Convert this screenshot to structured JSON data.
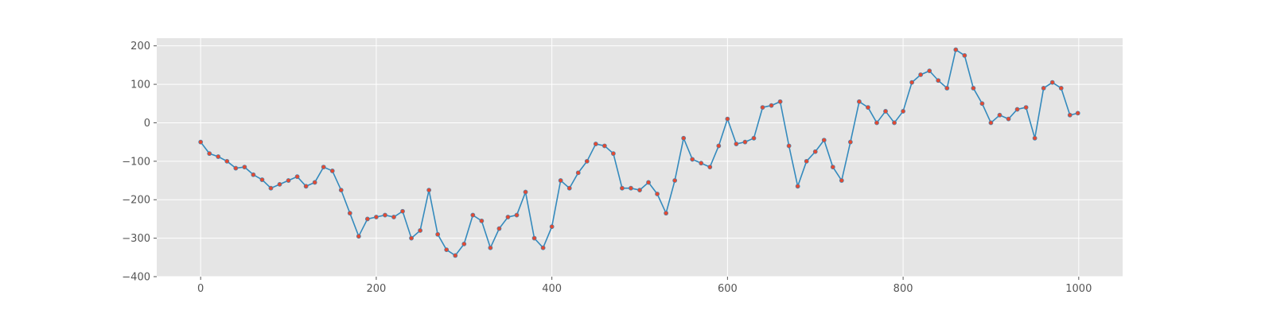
{
  "chart_data": {
    "type": "line",
    "title": "",
    "xlabel": "",
    "ylabel": "",
    "xlim": [
      -50,
      1050
    ],
    "ylim": [
      -400,
      220
    ],
    "xticks": [
      0,
      200,
      400,
      600,
      800,
      1000
    ],
    "xtick_labels": [
      "0",
      "200",
      "400",
      "600",
      "800",
      "1000"
    ],
    "yticks": [
      -400,
      -300,
      -200,
      -100,
      0,
      100,
      200
    ],
    "ytick_labels": [
      "−400",
      "−300",
      "−200",
      "−100",
      "0",
      "100",
      "200"
    ],
    "grid": true,
    "legend": "none",
    "style": {
      "plot_background": "#e5e5e5",
      "grid_color": "#ffffff",
      "line_color": "#348abd",
      "marker_color": "#e24a33",
      "tick_color": "#555555"
    },
    "series": [
      {
        "x": [
          0,
          10,
          20,
          30,
          40,
          50,
          60,
          70,
          80,
          90,
          100,
          110,
          120,
          130,
          140,
          150,
          160,
          170,
          180,
          190,
          200,
          210,
          220,
          230,
          240,
          250,
          260,
          270,
          280,
          290,
          300,
          310,
          320,
          330,
          340,
          350,
          360,
          370,
          380,
          390,
          400,
          410,
          420,
          430,
          440,
          450,
          460,
          470,
          480,
          490,
          500,
          510,
          520,
          530,
          540,
          550,
          560,
          570,
          580,
          590,
          600,
          610,
          620,
          630,
          640,
          650,
          660,
          670,
          680,
          690,
          700,
          710,
          720,
          730,
          740,
          750,
          760,
          770,
          780,
          790,
          800,
          810,
          820,
          830,
          840,
          850,
          860,
          870,
          880,
          890,
          900,
          910,
          920,
          930,
          940,
          950,
          960,
          970,
          980,
          990,
          999
        ],
        "y": [
          -50,
          -80,
          -88,
          -100,
          -118,
          -115,
          -135,
          -148,
          -170,
          -160,
          -150,
          -140,
          -165,
          -155,
          -115,
          -125,
          -175,
          -235,
          -295,
          -250,
          -245,
          -240,
          -245,
          -230,
          -300,
          -280,
          -175,
          -290,
          -330,
          -345,
          -315,
          -240,
          -255,
          -325,
          -275,
          -245,
          -240,
          -180,
          -300,
          -325,
          -270,
          -150,
          -170,
          -130,
          -100,
          -55,
          -60,
          -80,
          -170,
          -170,
          -175,
          -155,
          -185,
          -235,
          -150,
          -40,
          -95,
          -105,
          -115,
          -60,
          10,
          -55,
          -50,
          -40,
          40,
          45,
          55,
          -60,
          -165,
          -100,
          -75,
          -45,
          -115,
          -150,
          -50,
          55,
          40,
          0,
          30,
          0,
          30,
          105,
          125,
          135,
          110,
          90,
          190,
          175,
          90,
          50,
          0,
          20,
          10,
          35,
          40,
          -40,
          90,
          105,
          90,
          20,
          25
        ]
      }
    ]
  }
}
